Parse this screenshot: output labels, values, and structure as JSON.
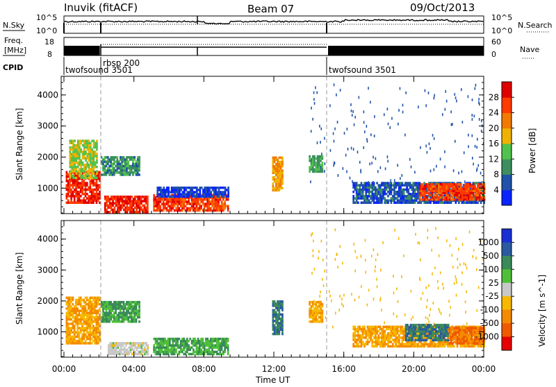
{
  "header": {
    "station": "Inuvik (fitACF)",
    "beam": "Beam 07",
    "date": "09/Oct/2013"
  },
  "top_panel": {
    "nsky_label": "N.Sky",
    "nsky_tick_top": "10^5",
    "nsky_tick_bottom": "10^0",
    "nsearch_label": "N.Search",
    "nsearch_tick_top": "10^5",
    "nsearch_tick_bottom": "10^0",
    "freq_label_line1": "Freq.",
    "freq_label_line2": "[MHz]",
    "freq_tick_top": "18",
    "freq_tick_bottom": "8",
    "nave_label": "Nave",
    "nave_tick_top": "60",
    "nave_tick_bottom": "0",
    "cpid_label": "CPID",
    "modes": [
      {
        "name": "twofsound 3501",
        "start_h": 0.0,
        "end_h": 2.05
      },
      {
        "name": "rbsp 200",
        "start_h": 2.05,
        "end_h": 15.1
      },
      {
        "name": "twofsound 3501",
        "start_h": 15.1,
        "end_h": 24.0
      }
    ]
  },
  "x_axis": {
    "label": "Time UT",
    "ticks": [
      "00:00",
      "04:00",
      "08:00",
      "12:00",
      "16:00",
      "20:00",
      "00:00"
    ]
  },
  "power_panel": {
    "ylabel": "Slant Range [km]",
    "yticks": [
      "1000",
      "2000",
      "3000",
      "4000"
    ],
    "colorbar_label": "Power [dB]",
    "colorbar_ticks": [
      "4",
      "8",
      "12",
      "16",
      "20",
      "24",
      "28"
    ],
    "colors": [
      "#0a24ff",
      "#1f52a8",
      "#3d8f5f",
      "#52c24f",
      "#f0b200",
      "#f27a00",
      "#ff3b00",
      "#e00000"
    ]
  },
  "velocity_panel": {
    "ylabel": "Slant Range [km]",
    "yticks": [
      "1000",
      "2000",
      "3000",
      "4000"
    ],
    "colorbar_label": "Velocity [m s^-1]",
    "colorbar_ticks": [
      "1000",
      "500",
      "100",
      "25",
      "-25",
      "-100",
      "-500",
      "-1000"
    ],
    "colors": [
      "#1a2fd6",
      "#2b5aa0",
      "#3a8a5a",
      "#4fbf3a",
      "#c8c8c8",
      "#f7b800",
      "#f48a00",
      "#ef5a00",
      "#e60000"
    ]
  },
  "chart_data": [
    {
      "type": "heatmap",
      "title": "Power",
      "xlabel": "Time UT",
      "ylabel": "Slant Range [km]",
      "xlim": [
        0,
        24
      ],
      "ylim": [
        180,
        4600
      ],
      "colorbar": {
        "label": "Power [dB]",
        "range": [
          0,
          32
        ]
      },
      "regions": [
        {
          "t0": 0.1,
          "t1": 2.0,
          "r0": 500,
          "r1": 1500,
          "value": 28
        },
        {
          "t0": 0.3,
          "t1": 1.9,
          "r0": 1300,
          "r1": 2500,
          "value": 16
        },
        {
          "t0": 2.1,
          "t1": 4.3,
          "r0": 1400,
          "r1": 2000,
          "value": 10
        },
        {
          "t0": 2.3,
          "t1": 4.8,
          "r0": 200,
          "r1": 700,
          "value": 28
        },
        {
          "t0": 5.1,
          "t1": 9.4,
          "r0": 250,
          "r1": 800,
          "value": 26
        },
        {
          "t0": 5.3,
          "t1": 9.4,
          "r0": 700,
          "r1": 1000,
          "value": 4
        },
        {
          "t0": 11.9,
          "t1": 12.5,
          "r0": 900,
          "r1": 2000,
          "value": 20
        },
        {
          "t0": 14.0,
          "t1": 14.8,
          "r0": 1500,
          "r1": 2000,
          "value": 12
        },
        {
          "t0": 16.5,
          "t1": 24.0,
          "r0": 500,
          "r1": 1200,
          "value": 6
        },
        {
          "t0": 20.3,
          "t1": 24.0,
          "r0": 600,
          "r1": 1100,
          "value": 26
        }
      ]
    },
    {
      "type": "heatmap",
      "title": "Velocity",
      "xlabel": "Time UT",
      "ylabel": "Slant Range [km]",
      "xlim": [
        0,
        24
      ],
      "ylim": [
        180,
        4600
      ],
      "colorbar": {
        "label": "Velocity [m s^-1]",
        "range": [
          -1000,
          1000
        ]
      },
      "regions": [
        {
          "t0": 0.1,
          "t1": 2.0,
          "r0": 600,
          "r1": 2100,
          "value": -100
        },
        {
          "t0": 2.1,
          "t1": 4.3,
          "r0": 1300,
          "r1": 2000,
          "value": 100
        },
        {
          "t0": 2.5,
          "t1": 4.8,
          "r0": 250,
          "r1": 650,
          "value": 0
        },
        {
          "t0": 5.1,
          "t1": 9.4,
          "r0": 250,
          "r1": 800,
          "value": 100
        },
        {
          "t0": 11.9,
          "t1": 12.5,
          "r0": 900,
          "r1": 2000,
          "value": 500
        },
        {
          "t0": 14.0,
          "t1": 14.8,
          "r0": 1300,
          "r1": 2000,
          "value": -100
        },
        {
          "t0": 16.5,
          "t1": 24.0,
          "r0": 500,
          "r1": 1200,
          "value": -100
        },
        {
          "t0": 19.5,
          "t1": 22.0,
          "r0": 700,
          "r1": 1200,
          "value": 500
        },
        {
          "t0": 22.0,
          "t1": 24.0,
          "r0": 600,
          "r1": 1100,
          "value": -500
        }
      ]
    }
  ]
}
